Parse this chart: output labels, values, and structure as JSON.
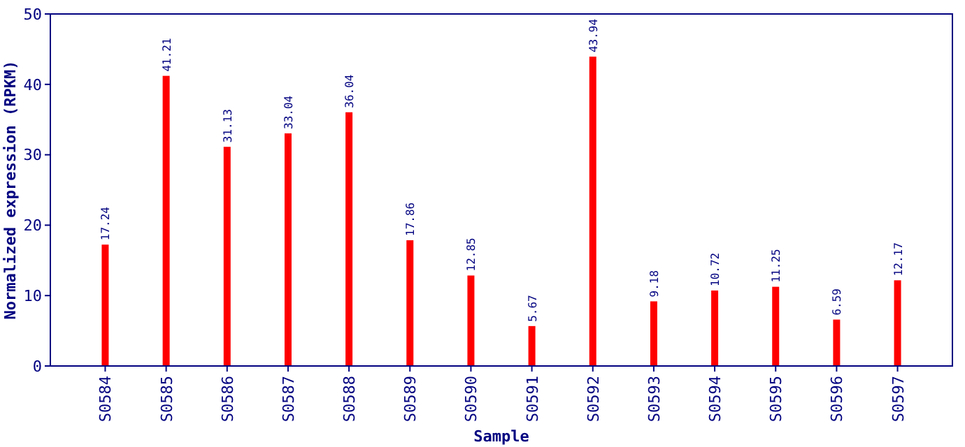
{
  "chart_data": {
    "type": "bar",
    "xlabel": "Sample",
    "ylabel": "Normalized expression (RPKM)",
    "categories": [
      "S0584",
      "S0585",
      "S0586",
      "S0587",
      "S0588",
      "S0589",
      "S0590",
      "S0591",
      "S0592",
      "S0593",
      "S0594",
      "S0595",
      "S0596",
      "S0597"
    ],
    "values": [
      17.24,
      41.21,
      31.13,
      33.04,
      36.04,
      17.86,
      12.85,
      5.67,
      43.94,
      9.18,
      10.72,
      11.25,
      6.59,
      12.17
    ],
    "color": "#ff0000",
    "ylim": [
      0,
      50
    ],
    "yticks": [
      0,
      10,
      20,
      30,
      40,
      50
    ],
    "data_labels": true,
    "grid": false
  }
}
